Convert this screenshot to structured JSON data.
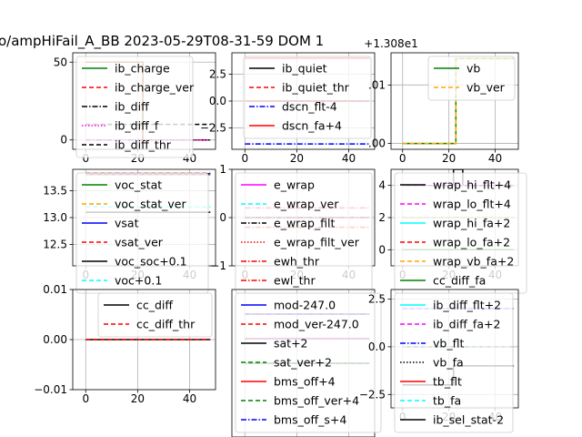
{
  "figure": {
    "title": "o/ampHiFail_A_BB   2023-05-29T08-31-59 DOM 1"
  },
  "chart_data": [
    {
      "type": "line",
      "xlim": [
        -5,
        50
      ],
      "ylim": [
        -6,
        56
      ],
      "xticks": [
        {
          "v": 0,
          "label": "0"
        },
        {
          "v": 20,
          "label": "20"
        },
        {
          "v": 40,
          "label": "40"
        }
      ],
      "yticks": [
        {
          "v": 0,
          "label": "0"
        },
        {
          "v": 50,
          "label": "50"
        }
      ],
      "grid": true,
      "legend_position": "upper-left",
      "series": [
        {
          "name": "ib_charge",
          "color": "#008000",
          "dash": "solid",
          "x": [
            0,
            22,
            22,
            48
          ],
          "y": [
            50,
            50,
            0,
            0
          ]
        },
        {
          "name": "ib_charge_ver",
          "color": "#ff0000",
          "dash": "dashed",
          "x": [
            0,
            22,
            22,
            48
          ],
          "y": [
            50,
            50,
            0,
            0
          ]
        },
        {
          "name": "ib_diff",
          "color": "#000000",
          "dash": "dashdot",
          "x": [
            0,
            48
          ],
          "y": [
            0,
            0
          ]
        },
        {
          "name": "ib_diff_f",
          "color": "#ff00ff",
          "dash": "dotted",
          "x": [
            0,
            48
          ],
          "y": [
            0,
            0
          ]
        },
        {
          "name": "ib_diff_thr",
          "color": "#000000",
          "dash": "dashed",
          "x": [
            0,
            48
          ],
          "y": [
            10,
            10
          ]
        }
      ]
    },
    {
      "type": "line",
      "xlim": [
        -5,
        50
      ],
      "ylim": [
        -4.5,
        4.5
      ],
      "xticks": [
        {
          "v": 0,
          "label": "0"
        },
        {
          "v": 20,
          "label": "20"
        },
        {
          "v": 40,
          "label": "40"
        }
      ],
      "yticks": [
        {
          "v": -2.5,
          "label": "−2.5"
        },
        {
          "v": 0,
          "label": "0.0"
        },
        {
          "v": 2.5,
          "label": "2.5"
        }
      ],
      "grid": true,
      "legend_position": "upper-right",
      "series": [
        {
          "name": "ib_quiet",
          "color": "#000000",
          "dash": "solid",
          "x": [
            0,
            48
          ],
          "y": [
            0,
            0
          ]
        },
        {
          "name": "ib_quiet_thr",
          "color": "#ff0000",
          "dash": "dashed",
          "x": [
            0,
            48
          ],
          "y": [
            0,
            0
          ]
        },
        {
          "name": "dscn_flt-4",
          "color": "#0000ff",
          "dash": "dashdot",
          "x": [
            0,
            48
          ],
          "y": [
            -4,
            -4
          ]
        },
        {
          "name": "dscn_fa+4",
          "color": "#ff0000",
          "dash": "solid",
          "x": [
            0,
            48
          ],
          "y": [
            4,
            4
          ]
        }
      ]
    },
    {
      "type": "line",
      "offset_label": "+1.308e1",
      "xlim": [
        -5,
        50
      ],
      "ylim": [
        -0.001,
        0.0155
      ],
      "xticks": [
        {
          "v": 0,
          "label": "0"
        },
        {
          "v": 20,
          "label": "20"
        },
        {
          "v": 40,
          "label": "40"
        }
      ],
      "yticks": [
        {
          "v": 0,
          "label": ".00"
        },
        {
          "v": 0.01,
          "label": ".01"
        }
      ],
      "grid": true,
      "legend_position": "upper-right",
      "series": [
        {
          "name": "vb",
          "color": "#008000",
          "dash": "solid",
          "x": [
            0,
            23,
            23,
            48
          ],
          "y": [
            0,
            0,
            0.0145,
            0.0145
          ]
        },
        {
          "name": "vb_ver",
          "color": "#ffa500",
          "dash": "dashed",
          "x": [
            0,
            23,
            23,
            48
          ],
          "y": [
            0,
            0,
            0.0145,
            0.0145
          ]
        }
      ]
    },
    {
      "type": "line",
      "xlim": [
        -5,
        50
      ],
      "ylim": [
        12.1,
        13.9
      ],
      "xticks": [
        {
          "v": 0,
          "label": "0"
        },
        {
          "v": 20,
          "label": "20"
        },
        {
          "v": 40,
          "label": "40"
        }
      ],
      "yticks": [
        {
          "v": 12.5,
          "label": "12.5"
        },
        {
          "v": 13.0,
          "label": "13.0"
        },
        {
          "v": 13.5,
          "label": "13.5"
        }
      ],
      "grid": true,
      "legend_position": "upper-left",
      "series": [
        {
          "name": "voc_stat",
          "color": "#008000",
          "dash": "solid",
          "x": [
            0,
            48
          ],
          "y": [
            13.8,
            13.8
          ]
        },
        {
          "name": "voc_stat_ver",
          "color": "#ffa500",
          "dash": "dashed",
          "x": [
            0,
            48
          ],
          "y": [
            13.8,
            13.8
          ]
        },
        {
          "name": "vsat",
          "color": "#0000ff",
          "dash": "solid",
          "x": [
            0,
            48
          ],
          "y": [
            13.82,
            13.82
          ]
        },
        {
          "name": "vsat_ver",
          "color": "#ff0000",
          "dash": "dashed",
          "x": [
            0,
            48
          ],
          "y": [
            13.83,
            13.83
          ]
        },
        {
          "name": "voc_soc+0.1",
          "color": "#000000",
          "dash": "solid",
          "x": [
            0,
            48
          ],
          "y": [
            13.1,
            13.1
          ]
        },
        {
          "name": "voc+0.1",
          "color": "#00ffff",
          "dash": "dashed",
          "x": [
            0,
            48
          ],
          "y": [
            13.2,
            13.2
          ]
        }
      ]
    },
    {
      "type": "line",
      "xlim": [
        -5,
        50
      ],
      "ylim": [
        -1.0,
        1.0
      ],
      "xticks": [
        {
          "v": 0,
          "label": "0"
        },
        {
          "v": 20,
          "label": "20"
        },
        {
          "v": 40,
          "label": "40"
        }
      ],
      "yticks": [
        {
          "v": -1,
          "label": "−1"
        },
        {
          "v": 0,
          "label": "0"
        },
        {
          "v": 1,
          "label": "1"
        }
      ],
      "grid": true,
      "legend_position": "upper-left",
      "series": [
        {
          "name": "e_wrap",
          "color": "#ff00ff",
          "dash": "solid",
          "x": [
            0,
            48
          ],
          "y": [
            0,
            0
          ]
        },
        {
          "name": "e_wrap_ver",
          "color": "#00ffff",
          "dash": "dashed",
          "x": [
            0,
            48
          ],
          "y": [
            0,
            0
          ]
        },
        {
          "name": "e_wrap_filt",
          "color": "#000000",
          "dash": "dashdot",
          "x": [
            0,
            48
          ],
          "y": [
            0,
            0
          ]
        },
        {
          "name": "e_wrap_filt_ver",
          "color": "#ff0000",
          "dash": "dotted",
          "x": [
            0,
            48
          ],
          "y": [
            0,
            0
          ]
        },
        {
          "name": "ewh_thr",
          "color": "#ff0000",
          "dash": "dashdot",
          "x": [
            0,
            48
          ],
          "y": [
            0.2,
            0.2
          ]
        },
        {
          "name": "ewl_thr",
          "color": "#ff0000",
          "dash": "dashdot",
          "x": [
            0,
            48
          ],
          "y": [
            -0.2,
            -0.2
          ]
        }
      ]
    },
    {
      "type": "line",
      "xlim": [
        -5,
        50
      ],
      "ylim": [
        -1,
        5
      ],
      "xticks": [
        {
          "v": 0,
          "label": "0"
        },
        {
          "v": 20,
          "label": "20"
        },
        {
          "v": 40,
          "label": "40"
        }
      ],
      "yticks": [
        {
          "v": 0,
          "label": "0"
        },
        {
          "v": 2,
          "label": "2"
        },
        {
          "v": 4,
          "label": "4"
        }
      ],
      "grid": true,
      "legend_position": "upper-left",
      "series": [
        {
          "name": "wrap_hi_flt+4",
          "color": "#000000",
          "dash": "solid",
          "x": [
            0,
            22,
            22,
            26,
            26,
            48
          ],
          "y": [
            4,
            4,
            5,
            5,
            4,
            4
          ]
        },
        {
          "name": "wrap_lo_flt+4",
          "color": "#ff00ff",
          "dash": "dashed",
          "x": [
            0,
            48
          ],
          "y": [
            4,
            4
          ]
        },
        {
          "name": "wrap_hi_fa+2",
          "color": "#00ffff",
          "dash": "solid",
          "x": [
            0,
            48
          ],
          "y": [
            2,
            2
          ]
        },
        {
          "name": "wrap_lo_fa+2",
          "color": "#ff0000",
          "dash": "dashed",
          "x": [
            0,
            48
          ],
          "y": [
            2,
            2
          ]
        },
        {
          "name": "wrap_vb_fa+2",
          "color": "#ffa500",
          "dash": "dashed",
          "x": [
            0,
            48
          ],
          "y": [
            2,
            2
          ]
        },
        {
          "name": "cc_diff_fa",
          "color": "#008000",
          "dash": "solid",
          "x": [
            0,
            48
          ],
          "y": [
            0,
            0
          ]
        }
      ]
    },
    {
      "type": "line",
      "xlim": [
        -5,
        50
      ],
      "ylim": [
        -0.01,
        0.01
      ],
      "xticks": [
        {
          "v": 0,
          "label": "0"
        },
        {
          "v": 20,
          "label": "20"
        },
        {
          "v": 40,
          "label": "40"
        }
      ],
      "yticks": [
        {
          "v": -0.01,
          "label": "−0.01"
        },
        {
          "v": 0,
          "label": "0.00"
        },
        {
          "v": 0.01,
          "label": "0.01"
        }
      ],
      "grid": true,
      "legend_position": "upper-right",
      "series": [
        {
          "name": "cc_diff",
          "color": "#000000",
          "dash": "solid",
          "x": [
            0,
            48
          ],
          "y": [
            0,
            0
          ]
        },
        {
          "name": "cc_diff_thr",
          "color": "#ff0000",
          "dash": "dashed",
          "x": [
            0,
            48
          ],
          "y": [
            0,
            0
          ]
        }
      ]
    },
    {
      "type": "line",
      "xlim": [
        -5,
        50
      ],
      "ylim": [
        -1,
        5
      ],
      "xticks": [
        {
          "v": 0,
          "label": "0"
        },
        {
          "v": 20,
          "label": "20"
        },
        {
          "v": 40,
          "label": "40"
        }
      ],
      "yticks": [],
      "grid": true,
      "legend_position": "upper-left",
      "series": [
        {
          "name": "mod-247.0",
          "color": "#0000ff",
          "dash": "solid",
          "x": [
            0,
            48
          ],
          "y": [
            3,
            3
          ]
        },
        {
          "name": "mod_ver-247.0",
          "color": "#ff0000",
          "dash": "dashed",
          "x": [
            0,
            48
          ],
          "y": [
            3,
            3
          ]
        },
        {
          "name": "sat+2",
          "color": "#000000",
          "dash": "solid",
          "x": [
            0,
            48
          ],
          "y": [
            2,
            2
          ]
        },
        {
          "name": "sat_ver+2",
          "color": "#008000",
          "dash": "dashed",
          "x": [
            0,
            48
          ],
          "y": [
            2,
            2
          ]
        },
        {
          "name": "bms_off+4",
          "color": "#ff0000",
          "dash": "solid",
          "x": [
            0,
            48
          ],
          "y": [
            4,
            4
          ]
        },
        {
          "name": "bms_off_ver+4",
          "color": "#008000",
          "dash": "dashed",
          "x": [
            0,
            48
          ],
          "y": [
            4,
            4
          ]
        },
        {
          "name": "bms_off_s+4",
          "color": "#0000ff",
          "dash": "dashdot",
          "x": [
            0,
            48
          ],
          "y": [
            4,
            4
          ]
        }
      ]
    },
    {
      "type": "line",
      "xlim": [
        -5,
        50
      ],
      "ylim": [
        -3.2,
        3.0
      ],
      "xticks": [
        {
          "v": 0,
          "label": "0"
        },
        {
          "v": 20,
          "label": "20"
        },
        {
          "v": 40,
          "label": "40"
        }
      ],
      "yticks": [
        {
          "v": -2.5,
          "label": "−2.5"
        },
        {
          "v": 0,
          "label": "0.0"
        },
        {
          "v": 2.5,
          "label": "2.5"
        }
      ],
      "grid": true,
      "legend_position": "upper-left",
      "series": [
        {
          "name": "ib_diff_flt+2",
          "color": "#00ffff",
          "dash": "solid",
          "x": [
            0,
            48
          ],
          "y": [
            2,
            2
          ]
        },
        {
          "name": "ib_diff_fa+2",
          "color": "#ff00ff",
          "dash": "dashed",
          "x": [
            0,
            48
          ],
          "y": [
            2,
            2
          ]
        },
        {
          "name": "vb_flt",
          "color": "#0000ff",
          "dash": "dashdot",
          "x": [
            0,
            48
          ],
          "y": [
            0,
            0
          ]
        },
        {
          "name": "vb_fa",
          "color": "#000000",
          "dash": "dotted",
          "x": [
            0,
            48
          ],
          "y": [
            0,
            0
          ]
        },
        {
          "name": "tb_flt",
          "color": "#ff0000",
          "dash": "solid",
          "x": [
            0,
            48
          ],
          "y": [
            0,
            0
          ]
        },
        {
          "name": "tb_fa",
          "color": "#00ffff",
          "dash": "dashed",
          "x": [
            0,
            48
          ],
          "y": [
            0,
            0
          ]
        },
        {
          "name": "ib_sel_stat-2",
          "color": "#000000",
          "dash": "solid",
          "x": [
            0,
            22,
            22,
            48
          ],
          "y": [
            -2,
            -2,
            -1,
            -1
          ]
        }
      ]
    }
  ]
}
